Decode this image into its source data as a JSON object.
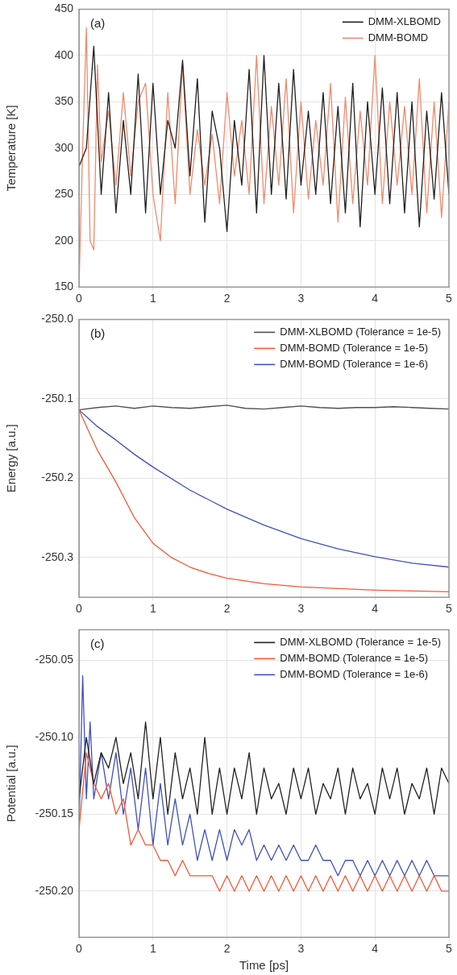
{
  "chart_data": [
    {
      "type": "line",
      "annotations": [
        "(a)"
      ],
      "ylabel": "Temperature [K]",
      "xlim": [
        0,
        5
      ],
      "xticks": [
        0,
        1,
        2,
        3,
        4,
        5
      ],
      "ylim": [
        150,
        450
      ],
      "yticks": [
        150,
        200,
        250,
        300,
        350,
        400,
        450
      ],
      "grid": true,
      "legend": "top right",
      "series": [
        {
          "name": "DMM-XLBOMD",
          "color": "#202020",
          "x": [
            0,
            0.1,
            0.2,
            0.3,
            0.4,
            0.5,
            0.6,
            0.7,
            0.8,
            0.9,
            1,
            1.1,
            1.2,
            1.3,
            1.4,
            1.5,
            1.6,
            1.7,
            1.8,
            1.9,
            2,
            2.1,
            2.2,
            2.3,
            2.4,
            2.5,
            2.6,
            2.7,
            2.8,
            2.9,
            3,
            3.1,
            3.2,
            3.3,
            3.4,
            3.5,
            3.6,
            3.7,
            3.8,
            3.9,
            4,
            4.1,
            4.2,
            4.3,
            4.4,
            4.5,
            4.6,
            4.7,
            4.8,
            4.9,
            5
          ],
          "values": [
            280,
            300,
            410,
            250,
            360,
            230,
            330,
            250,
            380,
            230,
            370,
            250,
            330,
            300,
            395,
            270,
            375,
            220,
            340,
            300,
            210,
            330,
            260,
            385,
            230,
            400,
            250,
            370,
            245,
            385,
            260,
            340,
            250,
            360,
            240,
            345,
            230,
            370,
            215,
            350,
            250,
            365,
            240,
            360,
            230,
            350,
            215,
            340,
            245,
            360,
            250
          ]
        },
        {
          "name": "DMM-BOMD",
          "color": "#f08a6c",
          "x": [
            0,
            0.05,
            0.1,
            0.15,
            0.2,
            0.25,
            0.3,
            0.4,
            0.5,
            0.6,
            0.7,
            0.8,
            0.9,
            1,
            1.1,
            1.2,
            1.3,
            1.4,
            1.5,
            1.6,
            1.7,
            1.8,
            1.9,
            2,
            2.1,
            2.2,
            2.3,
            2.4,
            2.5,
            2.6,
            2.7,
            2.8,
            2.9,
            3,
            3.1,
            3.2,
            3.3,
            3.4,
            3.5,
            3.6,
            3.7,
            3.8,
            3.9,
            4,
            4.1,
            4.2,
            4.3,
            4.4,
            4.5,
            4.6,
            4.7,
            4.8,
            4.9,
            5
          ],
          "values": [
            150,
            300,
            430,
            200,
            190,
            390,
            285,
            340,
            260,
            360,
            270,
            350,
            370,
            250,
            200,
            360,
            240,
            390,
            250,
            320,
            260,
            315,
            240,
            360,
            270,
            330,
            250,
            400,
            240,
            345,
            260,
            375,
            230,
            350,
            245,
            330,
            260,
            370,
            220,
            355,
            240,
            340,
            260,
            400,
            240,
            350,
            260,
            345,
            250,
            375,
            230,
            350,
            225,
            350
          ]
        }
      ]
    },
    {
      "type": "line",
      "annotations": [
        "(b)"
      ],
      "ylabel": "Energy [a.u.]",
      "xlim": [
        0,
        5
      ],
      "xticks": [
        0,
        1,
        2,
        3,
        4,
        5
      ],
      "ylim": [
        -250.35,
        -250.0
      ],
      "yticks": [
        {
          "value": -250.3,
          "label": "-250.3"
        },
        {
          "value": -250.2,
          "label": "-250.2"
        },
        {
          "value": -250.1,
          "label": "-250.1"
        },
        {
          "value": -250.0,
          "label": "-250.0"
        }
      ],
      "grid": true,
      "legend": "top right",
      "series": [
        {
          "name": "DMM-XLBOMD (Tolerance = 1e-5)",
          "color": "#505050",
          "x": [
            0,
            0.25,
            0.5,
            0.75,
            1,
            1.25,
            1.5,
            1.75,
            2,
            2.25,
            2.5,
            2.75,
            3,
            3.25,
            3.5,
            3.75,
            4,
            4.25,
            4.5,
            4.75,
            5
          ],
          "values": [
            -250.114,
            -250.111,
            -250.109,
            -250.112,
            -250.109,
            -250.111,
            -250.112,
            -250.11,
            -250.108,
            -250.112,
            -250.113,
            -250.111,
            -250.109,
            -250.111,
            -250.112,
            -250.111,
            -250.111,
            -250.11,
            -250.111,
            -250.112,
            -250.113
          ]
        },
        {
          "name": "DMM-BOMD (Tolerance = 1e-5)",
          "color": "#f05a36",
          "x": [
            0,
            0.25,
            0.5,
            0.75,
            1,
            1.25,
            1.5,
            1.75,
            2,
            2.5,
            3,
            3.5,
            4,
            4.5,
            5
          ],
          "values": [
            -250.114,
            -250.165,
            -250.205,
            -250.25,
            -250.282,
            -250.3,
            -250.312,
            -250.32,
            -250.326,
            -250.333,
            -250.337,
            -250.339,
            -250.341,
            -250.342,
            -250.343
          ]
        },
        {
          "name": "DMM-BOMD (Tolerance = 1e-6)",
          "color": "#4050c0",
          "x": [
            0,
            0.25,
            0.5,
            0.75,
            1,
            1.5,
            2,
            2.5,
            3,
            3.5,
            4,
            4.5,
            5
          ],
          "values": [
            -250.114,
            -250.135,
            -250.152,
            -250.17,
            -250.186,
            -250.215,
            -250.239,
            -250.259,
            -250.276,
            -250.289,
            -250.299,
            -250.307,
            -250.312
          ]
        }
      ]
    },
    {
      "type": "line",
      "annotations": [
        "(c)"
      ],
      "xlabel": "Time [ps]",
      "ylabel": "Potential [a.u.]",
      "xlim": [
        0,
        5
      ],
      "xticks": [
        0,
        1,
        2,
        3,
        4,
        5
      ],
      "ylim": [
        -250.23,
        -250.03
      ],
      "yticks": [
        {
          "value": -250.2,
          "label": "-250.20"
        },
        {
          "value": -250.15,
          "label": "-250.15"
        },
        {
          "value": -250.1,
          "label": "-250.10"
        },
        {
          "value": -250.05,
          "label": "-250.05"
        }
      ],
      "grid": true,
      "legend": "top right",
      "series": [
        {
          "name": "DMM-XLBOMD (Tolerance = 1e-5)",
          "color": "#202020",
          "x": [
            0,
            0.1,
            0.2,
            0.3,
            0.4,
            0.5,
            0.6,
            0.7,
            0.8,
            0.9,
            1,
            1.1,
            1.2,
            1.3,
            1.4,
            1.5,
            1.6,
            1.7,
            1.8,
            1.9,
            2,
            2.1,
            2.2,
            2.3,
            2.4,
            2.5,
            2.6,
            2.7,
            2.8,
            2.9,
            3,
            3.1,
            3.2,
            3.3,
            3.4,
            3.5,
            3.6,
            3.7,
            3.8,
            3.9,
            4,
            4.1,
            4.2,
            4.3,
            4.4,
            4.5,
            4.6,
            4.7,
            4.8,
            4.9,
            5
          ],
          "values": [
            -250.14,
            -250.1,
            -250.13,
            -250.11,
            -250.12,
            -250.1,
            -250.13,
            -250.11,
            -250.14,
            -250.09,
            -250.14,
            -250.1,
            -250.15,
            -250.11,
            -250.14,
            -250.12,
            -250.15,
            -250.1,
            -250.15,
            -250.12,
            -250.15,
            -250.12,
            -250.14,
            -250.11,
            -250.15,
            -250.12,
            -250.14,
            -250.13,
            -250.15,
            -250.12,
            -250.14,
            -250.12,
            -250.15,
            -250.13,
            -250.14,
            -250.12,
            -250.15,
            -250.12,
            -250.14,
            -250.13,
            -250.15,
            -250.12,
            -250.14,
            -250.12,
            -250.15,
            -250.13,
            -250.14,
            -250.12,
            -250.15,
            -250.12,
            -250.13
          ]
        },
        {
          "name": "DMM-BOMD (Tolerance = 1e-5)",
          "color": "#f05a36",
          "x": [
            0,
            0.1,
            0.2,
            0.3,
            0.4,
            0.5,
            0.6,
            0.7,
            0.8,
            0.9,
            1,
            1.1,
            1.2,
            1.3,
            1.4,
            1.5,
            1.6,
            1.7,
            1.8,
            1.9,
            2,
            2.1,
            2.2,
            2.3,
            2.4,
            2.5,
            2.6,
            2.7,
            2.8,
            2.9,
            3,
            3.1,
            3.2,
            3.3,
            3.4,
            3.5,
            3.6,
            3.7,
            3.8,
            3.9,
            4,
            4.1,
            4.2,
            4.3,
            4.4,
            4.5,
            4.6,
            4.7,
            4.8,
            4.9,
            5
          ],
          "values": [
            -250.16,
            -250.11,
            -250.13,
            -250.14,
            -250.13,
            -250.15,
            -250.14,
            -250.17,
            -250.16,
            -250.17,
            -250.17,
            -250.18,
            -250.18,
            -250.19,
            -250.18,
            -250.19,
            -250.19,
            -250.19,
            -250.19,
            -250.2,
            -250.19,
            -250.2,
            -250.19,
            -250.2,
            -250.19,
            -250.2,
            -250.19,
            -250.2,
            -250.19,
            -250.2,
            -250.19,
            -250.2,
            -250.19,
            -250.2,
            -250.19,
            -250.2,
            -250.19,
            -250.2,
            -250.19,
            -250.2,
            -250.19,
            -250.2,
            -250.19,
            -250.2,
            -250.19,
            -250.2,
            -250.19,
            -250.2,
            -250.19,
            -250.2,
            -250.2
          ]
        },
        {
          "name": "DMM-BOMD (Tolerance = 1e-6)",
          "color": "#4050b8",
          "x": [
            0,
            0.05,
            0.1,
            0.15,
            0.2,
            0.3,
            0.4,
            0.5,
            0.6,
            0.7,
            0.8,
            0.9,
            1,
            1.1,
            1.2,
            1.3,
            1.4,
            1.5,
            1.6,
            1.7,
            1.8,
            1.9,
            2,
            2.1,
            2.2,
            2.3,
            2.4,
            2.5,
            2.6,
            2.7,
            2.8,
            2.9,
            3,
            3.1,
            3.2,
            3.3,
            3.4,
            3.5,
            3.6,
            3.7,
            3.8,
            3.9,
            4,
            4.1,
            4.2,
            4.3,
            4.4,
            4.5,
            4.6,
            4.7,
            4.8,
            4.9,
            5
          ],
          "values": [
            -250.16,
            -250.06,
            -250.14,
            -250.09,
            -250.14,
            -250.11,
            -250.14,
            -250.11,
            -250.15,
            -250.12,
            -250.16,
            -250.12,
            -250.17,
            -250.13,
            -250.17,
            -250.14,
            -250.17,
            -250.15,
            -250.18,
            -250.16,
            -250.18,
            -250.16,
            -250.18,
            -250.16,
            -250.17,
            -250.16,
            -250.18,
            -250.17,
            -250.18,
            -250.17,
            -250.18,
            -250.17,
            -250.18,
            -250.18,
            -250.17,
            -250.18,
            -250.18,
            -250.19,
            -250.18,
            -250.18,
            -250.19,
            -250.18,
            -250.19,
            -250.18,
            -250.19,
            -250.18,
            -250.19,
            -250.18,
            -250.19,
            -250.18,
            -250.19,
            -250.19,
            -250.19
          ]
        }
      ]
    }
  ]
}
